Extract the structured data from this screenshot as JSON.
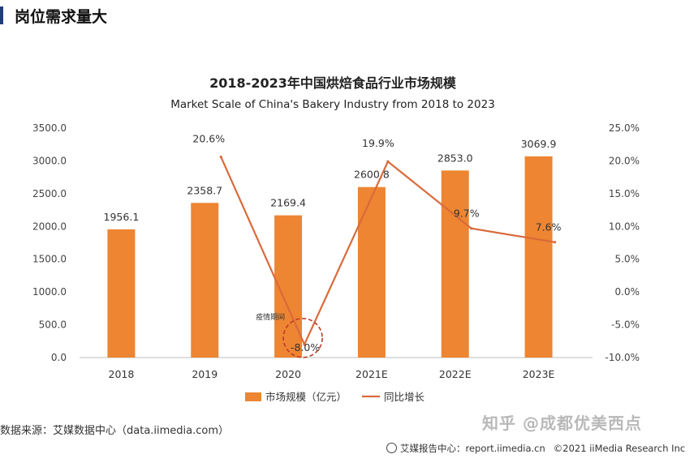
{
  "header": {
    "title": "岗位需求量大"
  },
  "chart_data": {
    "type": "bar",
    "title": "2018-2023年中国烘焙食品行业市场规模",
    "subtitle": "Market Scale of China's Bakery Industry from 2018 to 2023",
    "categories": [
      "2018",
      "2019",
      "2020",
      "2021E",
      "2022E",
      "2023E"
    ],
    "series": [
      {
        "name": "市场规模（亿元）",
        "type": "bar",
        "axis": "left",
        "color": "#ed8532",
        "values": [
          1956.1,
          2358.7,
          2169.4,
          2600.8,
          2853.0,
          3069.9
        ],
        "labels": [
          "1956.1",
          "2358.7",
          "2169.4",
          "2600.8",
          "2853.0",
          "3069.9"
        ]
      },
      {
        "name": "同比增长",
        "type": "line",
        "axis": "right",
        "color": "#d96a3b",
        "values": [
          null,
          20.6,
          -8.0,
          19.9,
          9.7,
          7.6
        ],
        "labels": [
          "",
          "20.6%",
          "-8.0%",
          "19.9%",
          "9.7%",
          "7.6%"
        ]
      }
    ],
    "left_axis": {
      "ylim": [
        0,
        3500
      ],
      "ticks": [
        "0.0",
        "500.0",
        "1000.0",
        "1500.0",
        "2000.0",
        "2500.0",
        "3000.0",
        "3500.0"
      ]
    },
    "right_axis": {
      "ylim": [
        -10,
        25
      ],
      "ticks": [
        "-10.0%",
        "-5.0%",
        "0.0%",
        "5.0%",
        "10.0%",
        "15.0%",
        "20.0%",
        "25.0%"
      ]
    },
    "annotation": {
      "text": "疫情期间",
      "category": "2020",
      "highlight": "dashed circle"
    },
    "legend_position": "bottom",
    "grid": false
  },
  "source": "数据来源：艾媒数据中心（data.iimedia.com）",
  "footer": {
    "brand": "艾媒报告中心：report.iimedia.cn",
    "copyright": "©2021  iiMedia Research  Inc"
  },
  "watermark": "知乎 @成都优美西点",
  "colors": {
    "accent": "#ed8532",
    "line": "#d96a3b",
    "annotation": "#c0392b"
  }
}
